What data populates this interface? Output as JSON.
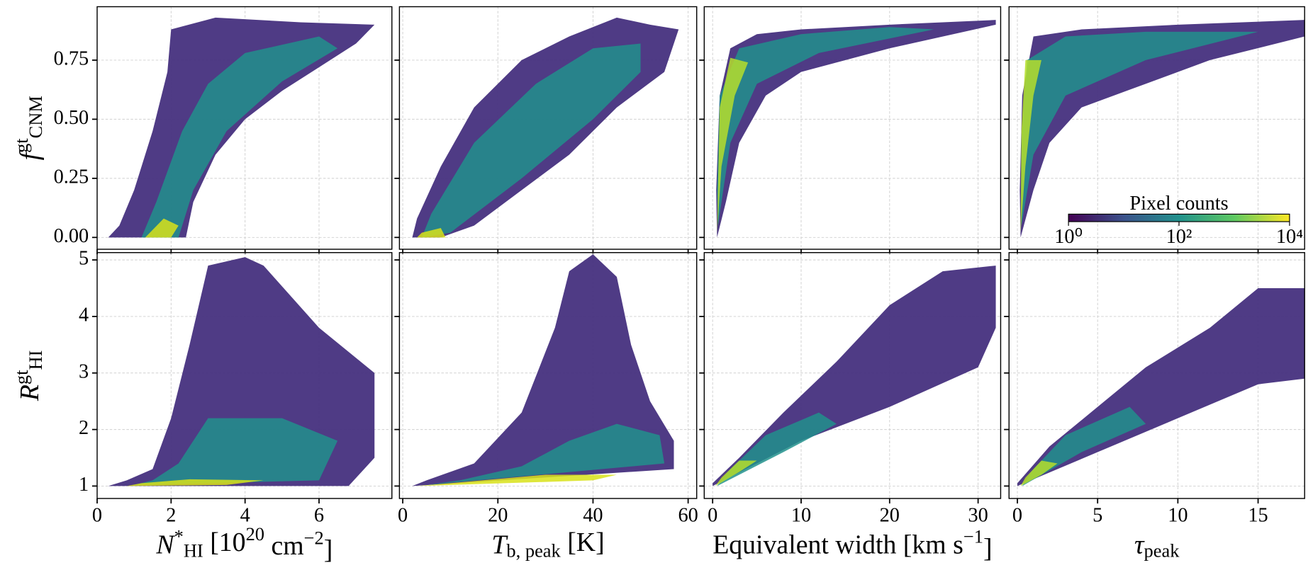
{
  "chart_data": [
    {
      "type": "hexbin",
      "xlim": [
        0,
        7.97
      ],
      "xticks": [
        0,
        2,
        4,
        6
      ],
      "ylim": [
        -0.05,
        0.976
      ],
      "yticks": [
        {
          "value": 0,
          "label": "0.00"
        },
        {
          "value": 0.25,
          "label": "0.25"
        },
        {
          "value": 0.5,
          "label": "0.50"
        },
        {
          "value": 0.75,
          "label": "0.75"
        }
      ],
      "grid": true,
      "ylabel": [
        {
          "text": "f",
          "style": "italic"
        },
        {
          "text": "gt",
          "style": "sup"
        },
        {
          "text": "CNM",
          "style": "sub"
        }
      ],
      "regions": [
        {
          "color": "#46307e",
          "x": [
            0.3,
            2.4,
            2.6,
            3.2,
            4,
            5,
            6,
            7,
            7.5,
            5.5,
            3.2,
            2,
            1.9,
            1.5,
            1,
            0.6
          ],
          "y": [
            0,
            0,
            0.15,
            0.35,
            0.5,
            0.62,
            0.72,
            0.82,
            0.9,
            0.91,
            0.93,
            0.88,
            0.7,
            0.45,
            0.2,
            0.05
          ]
        },
        {
          "color": "#21918c",
          "x": [
            1.2,
            2.2,
            2.6,
            3.5,
            5,
            6.5,
            6,
            4,
            3,
            2.3,
            1.6
          ],
          "y": [
            0,
            0,
            0.2,
            0.45,
            0.66,
            0.8,
            0.85,
            0.78,
            0.65,
            0.45,
            0.15
          ]
        },
        {
          "color": "#d8e219",
          "x": [
            1.3,
            2,
            2.2,
            1.8
          ],
          "y": [
            0,
            0,
            0.05,
            0.08
          ]
        }
      ]
    },
    {
      "type": "hexbin",
      "xlim": [
        -0.7,
        61.8
      ],
      "xticks": [
        0,
        20,
        40,
        60
      ],
      "ylim": [
        -0.05,
        0.976
      ],
      "yticks": [
        0,
        0.25,
        0.5,
        0.75
      ],
      "grid": true,
      "regions": [
        {
          "color": "#46307e",
          "x": [
            2,
            8,
            15,
            25,
            35,
            45,
            55,
            58,
            52,
            45,
            35,
            25,
            15,
            8,
            3
          ],
          "y": [
            0,
            0,
            0.05,
            0.2,
            0.35,
            0.55,
            0.7,
            0.88,
            0.9,
            0.93,
            0.85,
            0.75,
            0.55,
            0.3,
            0.08
          ]
        },
        {
          "color": "#21918c",
          "x": [
            4,
            10,
            25,
            40,
            50,
            50,
            40,
            28,
            15,
            6
          ],
          "y": [
            0,
            0.02,
            0.25,
            0.5,
            0.7,
            0.82,
            0.8,
            0.65,
            0.4,
            0.1
          ]
        },
        {
          "color": "#d8e219",
          "x": [
            3,
            9,
            8,
            4
          ],
          "y": [
            0,
            0,
            0.04,
            0.02
          ]
        }
      ]
    },
    {
      "type": "hexbin",
      "xlim": [
        -0.95,
        32.55
      ],
      "xticks": [
        0,
        10,
        20,
        30
      ],
      "ylim": [
        -0.05,
        0.976
      ],
      "yticks": [
        0,
        0.25,
        0.5,
        0.75
      ],
      "grid": true,
      "regions": [
        {
          "color": "#46307e",
          "x": [
            0.5,
            1.5,
            3,
            6,
            10,
            20,
            32,
            32,
            20,
            10,
            5,
            2,
            0.8,
            0.4
          ],
          "y": [
            0,
            0.15,
            0.4,
            0.6,
            0.7,
            0.8,
            0.9,
            0.92,
            0.9,
            0.88,
            0.86,
            0.8,
            0.6,
            0.2
          ]
        },
        {
          "color": "#21918c",
          "x": [
            0.6,
            2,
            5,
            12,
            25,
            20,
            10,
            3,
            0.8,
            0.5
          ],
          "y": [
            0.05,
            0.4,
            0.65,
            0.78,
            0.88,
            0.89,
            0.86,
            0.8,
            0.6,
            0.2
          ]
        },
        {
          "color": "#b5de2b",
          "x": [
            0.5,
            1,
            2.5,
            4,
            2,
            0.8
          ],
          "y": [
            0.02,
            0.3,
            0.6,
            0.74,
            0.76,
            0.55
          ]
        }
      ]
    },
    {
      "type": "hexbin",
      "xlim": [
        -0.52,
        17.9
      ],
      "xticks": [
        0,
        5,
        10,
        15
      ],
      "ylim": [
        -0.05,
        0.976
      ],
      "yticks": [
        0,
        0.25,
        0.5,
        0.75
      ],
      "grid": true,
      "regions": [
        {
          "color": "#46307e",
          "x": [
            0.2,
            1,
            2,
            4,
            8,
            12,
            17.9,
            17.9,
            10,
            4,
            1,
            0.3,
            0.15
          ],
          "y": [
            0,
            0.2,
            0.4,
            0.55,
            0.65,
            0.75,
            0.85,
            0.92,
            0.9,
            0.88,
            0.85,
            0.6,
            0.2
          ]
        },
        {
          "color": "#21918c",
          "x": [
            0.25,
            1,
            3,
            8,
            15,
            8,
            3,
            0.6,
            0.25
          ],
          "y": [
            0.05,
            0.35,
            0.6,
            0.75,
            0.87,
            0.87,
            0.85,
            0.75,
            0.4
          ]
        },
        {
          "color": "#b5de2b",
          "x": [
            0.2,
            0.5,
            1,
            1.5,
            0.5,
            0.25
          ],
          "y": [
            0.02,
            0.3,
            0.6,
            0.75,
            0.75,
            0.45
          ]
        }
      ],
      "colorbar": {
        "label": "Pixel counts",
        "lim": [
          1,
          10000
        ],
        "log": true,
        "ticks": [
          {
            "value": 1,
            "label": "10⁰"
          },
          {
            "value": 100,
            "label": "10²"
          },
          {
            "value": 10000,
            "label": "10⁴"
          }
        ],
        "colors": [
          "#440154",
          "#3b528b",
          "#21918c",
          "#5ec962",
          "#fde725"
        ]
      }
    },
    {
      "type": "hexbin",
      "xlim": [
        0,
        7.97
      ],
      "xticks": [
        0,
        2,
        4,
        6
      ],
      "ylim": [
        0.78,
        5.13
      ],
      "yticks": [
        1,
        2,
        3,
        4,
        5
      ],
      "grid": true,
      "xlabel": [
        {
          "text": "N",
          "style": "italic"
        },
        {
          "text": "*",
          "style": "sup"
        },
        {
          "text": "HI",
          "style": "sub"
        },
        {
          "text": " [10"
        },
        {
          "text": "20",
          "style": "sup"
        },
        {
          "text": " cm"
        },
        {
          "text": "−2",
          "style": "sup"
        },
        {
          "text": "]"
        }
      ],
      "ylabel": [
        {
          "text": "R",
          "style": "italic"
        },
        {
          "text": "gt",
          "style": "sup"
        },
        {
          "text": "HI",
          "style": "sub"
        }
      ],
      "regions": [
        {
          "color": "#46307e",
          "x": [
            0.3,
            6.8,
            7.5,
            7.5,
            6,
            4.5,
            4,
            3,
            2.5,
            2,
            1.5,
            0.8
          ],
          "y": [
            1,
            1,
            1.5,
            3,
            3.8,
            4.9,
            5.05,
            4.9,
            3.5,
            2.2,
            1.3,
            1.1
          ]
        },
        {
          "color": "#21918c",
          "x": [
            1,
            6,
            6.5,
            5,
            3,
            2.2,
            1.5
          ],
          "y": [
            1.02,
            1.1,
            1.8,
            2.2,
            2.2,
            1.4,
            1.1
          ]
        },
        {
          "color": "#d8e219",
          "x": [
            0.8,
            3.5,
            4.5,
            2.5,
            1.2
          ],
          "y": [
            1,
            1.02,
            1.1,
            1.12,
            1.05
          ]
        }
      ]
    },
    {
      "type": "hexbin",
      "xlim": [
        -0.7,
        61.8
      ],
      "xticks": [
        0,
        20,
        40,
        60
      ],
      "ylim": [
        0.78,
        5.13
      ],
      "yticks": [
        1,
        2,
        3,
        4,
        5
      ],
      "grid": true,
      "xlabel": [
        {
          "text": "T",
          "style": "italic"
        },
        {
          "text": "b, peak",
          "style": "sub"
        },
        {
          "text": " [K]"
        }
      ],
      "regions": [
        {
          "color": "#46307e",
          "x": [
            2,
            57,
            57,
            52,
            48,
            45,
            40,
            35,
            32,
            25,
            15,
            5
          ],
          "y": [
            1,
            1.3,
            1.8,
            2.5,
            3.5,
            4.7,
            5.1,
            4.8,
            3.8,
            2.3,
            1.4,
            1.1
          ]
        },
        {
          "color": "#21918c",
          "x": [
            5,
            55,
            54,
            45,
            35,
            25,
            12
          ],
          "y": [
            1.02,
            1.4,
            1.9,
            2.1,
            1.8,
            1.35,
            1.1
          ]
        },
        {
          "color": "#d8e219",
          "x": [
            3,
            40,
            45,
            30,
            10
          ],
          "y": [
            1,
            1.1,
            1.2,
            1.2,
            1.05
          ]
        }
      ]
    },
    {
      "type": "hexbin",
      "xlim": [
        -0.95,
        32.55
      ],
      "xticks": [
        0,
        10,
        20,
        30
      ],
      "ylim": [
        0.78,
        5.13
      ],
      "yticks": [
        1,
        2,
        3,
        4,
        5
      ],
      "grid": true,
      "xlabel": [
        {
          "text": "Equivalent width [km s"
        },
        {
          "text": "−1",
          "style": "sup"
        },
        {
          "text": "]"
        }
      ],
      "regions": [
        {
          "color": "#46307e",
          "x": [
            0,
            10,
            20,
            30,
            32,
            32,
            26,
            20,
            14,
            8,
            3,
            0
          ],
          "y": [
            1,
            1.8,
            2.4,
            3.1,
            3.8,
            4.9,
            4.8,
            4.2,
            3.2,
            2.3,
            1.5,
            1.05
          ]
        },
        {
          "color": "#21918c",
          "x": [
            0.5,
            8,
            14,
            12,
            6,
            2
          ],
          "y": [
            1,
            1.6,
            2.1,
            2.3,
            1.9,
            1.3
          ]
        },
        {
          "color": "#b5de2b",
          "x": [
            0.3,
            3,
            5,
            3,
            1
          ],
          "y": [
            1,
            1.25,
            1.45,
            1.45,
            1.15
          ]
        }
      ]
    },
    {
      "type": "hexbin",
      "xlim": [
        -0.52,
        17.9
      ],
      "xticks": [
        0,
        5,
        10,
        15
      ],
      "ylim": [
        0.78,
        5.13
      ],
      "yticks": [
        1,
        2,
        3,
        4,
        5
      ],
      "grid": true,
      "xlabel": [
        {
          "text": "τ",
          "style": "italic"
        },
        {
          "text": "peak",
          "style": "sub"
        }
      ],
      "regions": [
        {
          "color": "#46307e",
          "x": [
            0,
            5,
            10,
            15,
            17.9,
            17.9,
            15,
            12,
            8,
            5,
            2,
            0
          ],
          "y": [
            1,
            1.6,
            2.2,
            2.8,
            2.9,
            4.5,
            4.5,
            3.8,
            3.1,
            2.4,
            1.7,
            1.05
          ]
        },
        {
          "color": "#21918c",
          "x": [
            0.3,
            4,
            8,
            7,
            3,
            1
          ],
          "y": [
            1,
            1.6,
            2.1,
            2.4,
            1.9,
            1.3
          ]
        },
        {
          "color": "#b5de2b",
          "x": [
            0.2,
            1.5,
            2.5,
            1.5,
            0.5
          ],
          "y": [
            1,
            1.2,
            1.4,
            1.45,
            1.15
          ]
        }
      ]
    }
  ]
}
